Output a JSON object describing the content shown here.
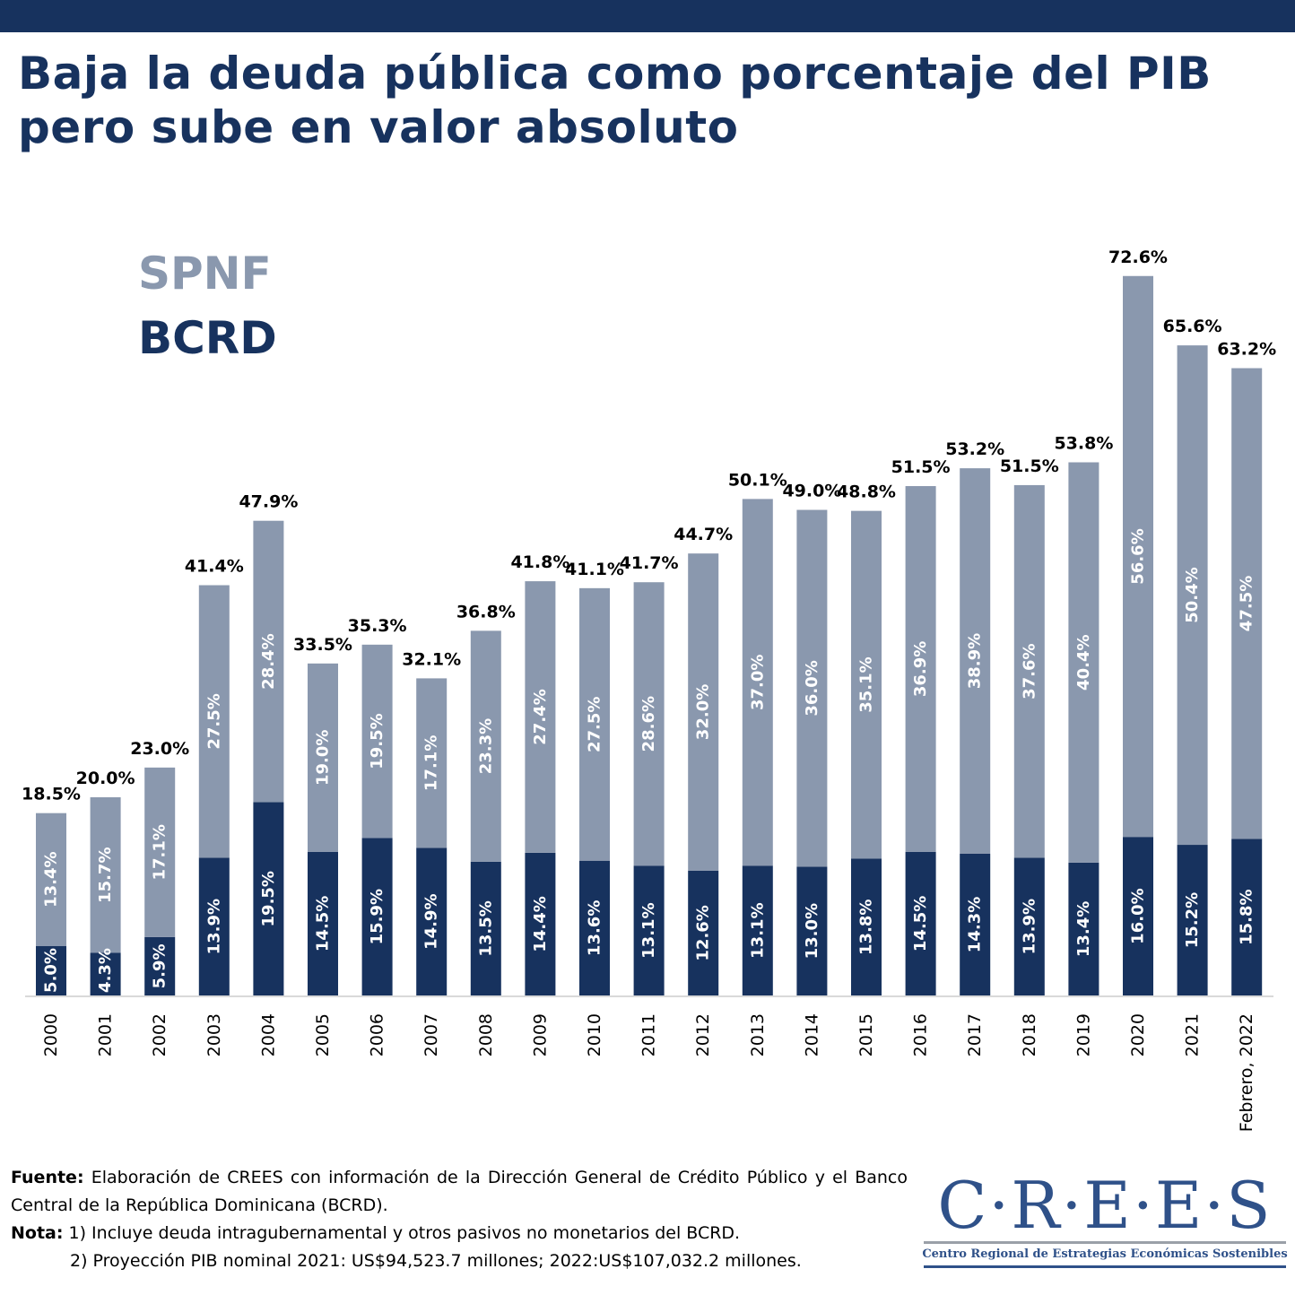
{
  "title": "Baja la deuda pública como porcentaje del PIB pero sube en valor absoluto",
  "legend": {
    "spnf": "SPNF",
    "bcrd": "BCRD"
  },
  "colors": {
    "spnf": "#8a98ae",
    "bcrd": "#17325e",
    "header": "#17325e",
    "axis": "#d9d9d9"
  },
  "chart_data": {
    "type": "bar",
    "stacked": true,
    "title": "Baja la deuda pública como porcentaje del PIB pero sube en valor absoluto",
    "xlabel": "",
    "ylabel": "",
    "ylim": [
      0,
      75
    ],
    "grid": false,
    "legend_position": "top-left",
    "categories": [
      "2000",
      "2001",
      "2002",
      "2003",
      "2004",
      "2005",
      "2006",
      "2007",
      "2008",
      "2009",
      "2010",
      "2011",
      "2012",
      "2013",
      "2014",
      "2015",
      "2016",
      "2017",
      "2018",
      "2019",
      "2020",
      "2021",
      "Febrero, 2022"
    ],
    "series": [
      {
        "name": "BCRD",
        "values": [
          5.0,
          4.3,
          5.9,
          13.9,
          19.5,
          14.5,
          15.9,
          14.9,
          13.5,
          14.4,
          13.6,
          13.1,
          12.6,
          13.1,
          13.0,
          13.8,
          14.5,
          14.3,
          13.9,
          13.4,
          16.0,
          15.2,
          15.8
        ]
      },
      {
        "name": "SPNF",
        "values": [
          13.4,
          15.7,
          17.1,
          27.5,
          28.4,
          19.0,
          19.5,
          17.1,
          23.3,
          27.4,
          27.5,
          28.6,
          32.0,
          37.0,
          36.0,
          35.1,
          36.9,
          38.9,
          37.6,
          40.4,
          56.6,
          50.4,
          47.5
        ]
      }
    ],
    "totals": [
      18.5,
      20.0,
      23.0,
      41.4,
      47.9,
      33.5,
      35.3,
      32.1,
      36.8,
      41.8,
      41.1,
      41.7,
      44.7,
      50.1,
      49.0,
      48.8,
      51.5,
      53.2,
      51.5,
      53.8,
      72.6,
      65.6,
      63.2
    ],
    "value_suffix": "%"
  },
  "footer": {
    "source_label": "Fuente:",
    "source_text": "Elaboración de CREES con información de la Dirección General de Crédito Público y el Banco Central de la República Dominicana (BCRD).",
    "note_label": "Nota:",
    "note_1": "1) Incluye deuda intragubernamental y otros pasivos no monetarios del BCRD.",
    "note_2": "2) Proyección PIB nominal 2021: US$94,523.7 millones; 2022:US$107,032.2 millones."
  },
  "logo": {
    "name": "C·R·E·E·S",
    "subtitle": "Centro Regional de Estrategias Económicas Sostenibles"
  }
}
